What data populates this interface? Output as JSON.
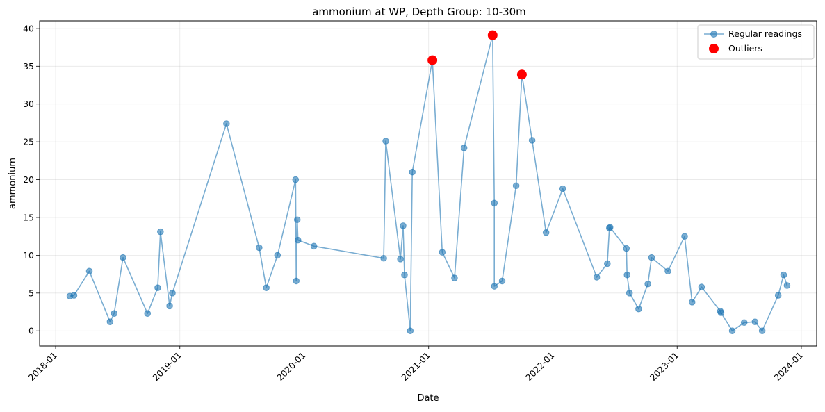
{
  "chart_data": {
    "type": "line",
    "title": "ammonium at WP, Depth Group: 10-30m",
    "xlabel": "Date",
    "ylabel": "ammonium",
    "xlim": [
      "2017-11-15",
      "2024-02-15"
    ],
    "ylim": [
      -2,
      41
    ],
    "x_ticks": [
      "2018-01",
      "2019-01",
      "2020-01",
      "2021-01",
      "2022-01",
      "2023-01",
      "2024-01"
    ],
    "y_ticks": [
      0,
      5,
      10,
      15,
      20,
      25,
      30,
      35,
      40
    ],
    "grid": true,
    "legend_position": "top-right",
    "colors": {
      "regular": "#1f77b4",
      "outlier": "#ff0000"
    },
    "series": [
      {
        "name": "Regular readings",
        "points": [
          [
            "2018-02-12",
            4.6
          ],
          [
            "2018-02-24",
            4.7
          ],
          [
            "2018-04-10",
            7.9
          ],
          [
            "2018-06-10",
            1.2
          ],
          [
            "2018-06-22",
            2.3
          ],
          [
            "2018-07-18",
            9.7
          ],
          [
            "2018-09-28",
            2.3
          ],
          [
            "2018-10-28",
            5.7
          ],
          [
            "2018-11-05",
            13.1
          ],
          [
            "2018-12-02",
            3.3
          ],
          [
            "2018-12-10",
            5.0
          ],
          [
            "2019-05-18",
            27.4
          ],
          [
            "2019-08-22",
            11.0
          ],
          [
            "2019-09-12",
            5.7
          ],
          [
            "2019-10-15",
            10.0
          ],
          [
            "2019-12-07",
            20.0
          ],
          [
            "2019-12-09",
            6.6
          ],
          [
            "2019-12-12",
            14.7
          ],
          [
            "2019-12-14",
            12.0
          ],
          [
            "2020-01-30",
            11.2
          ],
          [
            "2020-08-22",
            9.6
          ],
          [
            "2020-08-28",
            25.1
          ],
          [
            "2020-10-10",
            9.5
          ],
          [
            "2020-10-18",
            13.9
          ],
          [
            "2020-10-22",
            7.4
          ],
          [
            "2020-11-08",
            0.0
          ],
          [
            "2020-11-14",
            21.0
          ],
          [
            "2021-01-12",
            35.8
          ],
          [
            "2021-02-10",
            10.4
          ],
          [
            "2021-03-18",
            7.0
          ],
          [
            "2021-04-15",
            24.2
          ],
          [
            "2021-07-08",
            39.1
          ],
          [
            "2021-07-13",
            16.9
          ],
          [
            "2021-07-13",
            5.9
          ],
          [
            "2021-08-05",
            6.6
          ],
          [
            "2021-09-15",
            19.2
          ],
          [
            "2021-10-02",
            33.9
          ],
          [
            "2021-11-01",
            25.2
          ],
          [
            "2021-12-12",
            13.0
          ],
          [
            "2022-01-30",
            18.8
          ],
          [
            "2022-05-10",
            7.1
          ],
          [
            "2022-06-10",
            8.9
          ],
          [
            "2022-06-16",
            13.6
          ],
          [
            "2022-06-18",
            13.7
          ],
          [
            "2022-08-05",
            10.9
          ],
          [
            "2022-08-07",
            7.4
          ],
          [
            "2022-08-14",
            5.0
          ],
          [
            "2022-09-10",
            2.9
          ],
          [
            "2022-10-07",
            6.2
          ],
          [
            "2022-10-18",
            9.7
          ],
          [
            "2022-12-05",
            7.9
          ],
          [
            "2023-01-23",
            12.5
          ],
          [
            "2023-02-14",
            3.8
          ],
          [
            "2023-03-14",
            5.8
          ],
          [
            "2023-05-08",
            2.6
          ],
          [
            "2023-05-10",
            2.4
          ],
          [
            "2023-06-12",
            0.0
          ],
          [
            "2023-07-17",
            1.1
          ],
          [
            "2023-08-18",
            1.2
          ],
          [
            "2023-09-08",
            0.0
          ],
          [
            "2023-10-25",
            4.7
          ],
          [
            "2023-11-10",
            7.4
          ],
          [
            "2023-11-20",
            6.0
          ]
        ]
      },
      {
        "name": "Outliers",
        "points": [
          [
            "2021-01-12",
            35.8
          ],
          [
            "2021-07-08",
            39.1
          ],
          [
            "2021-10-02",
            33.9
          ]
        ]
      }
    ]
  }
}
